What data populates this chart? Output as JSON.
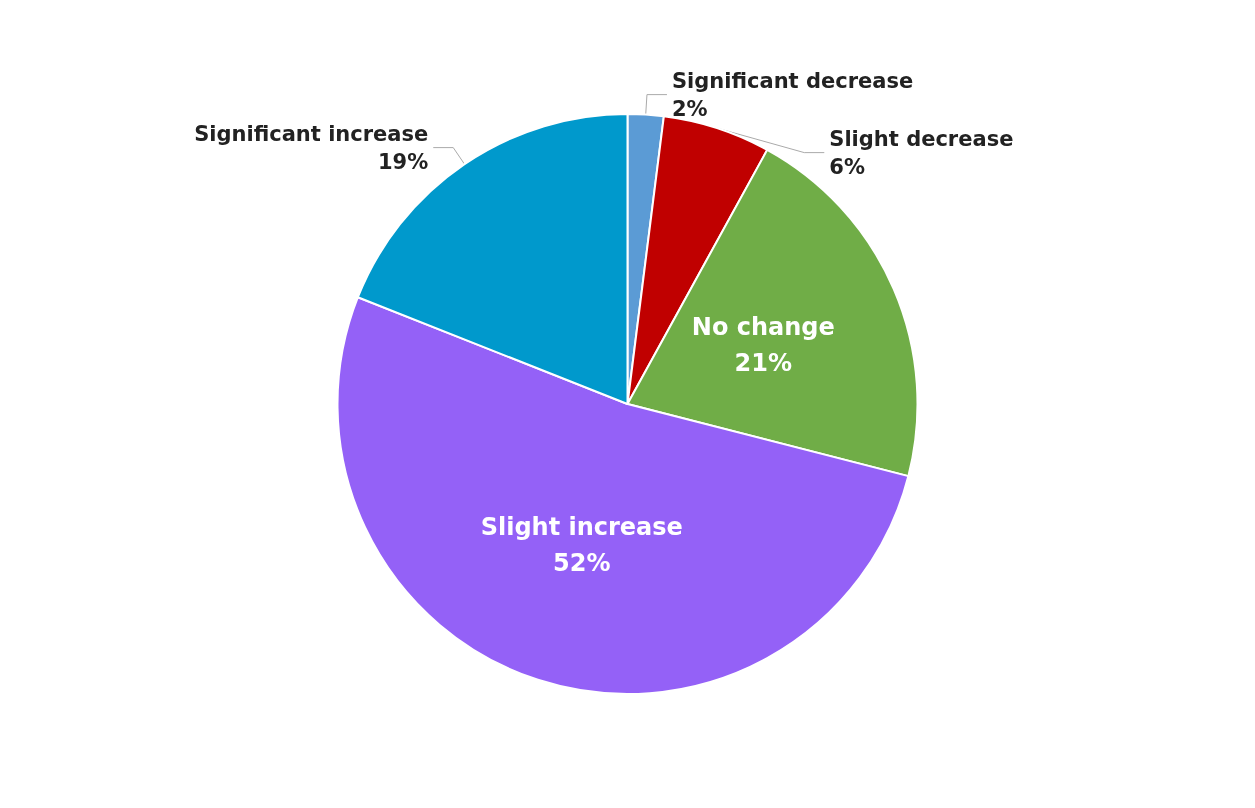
{
  "chart_data": {
    "type": "pie",
    "categories": [
      "Significant decrease",
      "Slight decrease",
      "No change",
      "Slight increase",
      "Significant increase"
    ],
    "values": [
      2,
      6,
      21,
      52,
      19
    ],
    "value_labels": [
      "2%",
      "6%",
      "21%",
      "52%",
      "19%"
    ],
    "colors": [
      "#5b9bd5",
      "#c00000",
      "#70ad47",
      "#9461f7",
      "#0099cc"
    ],
    "legend": false
  }
}
